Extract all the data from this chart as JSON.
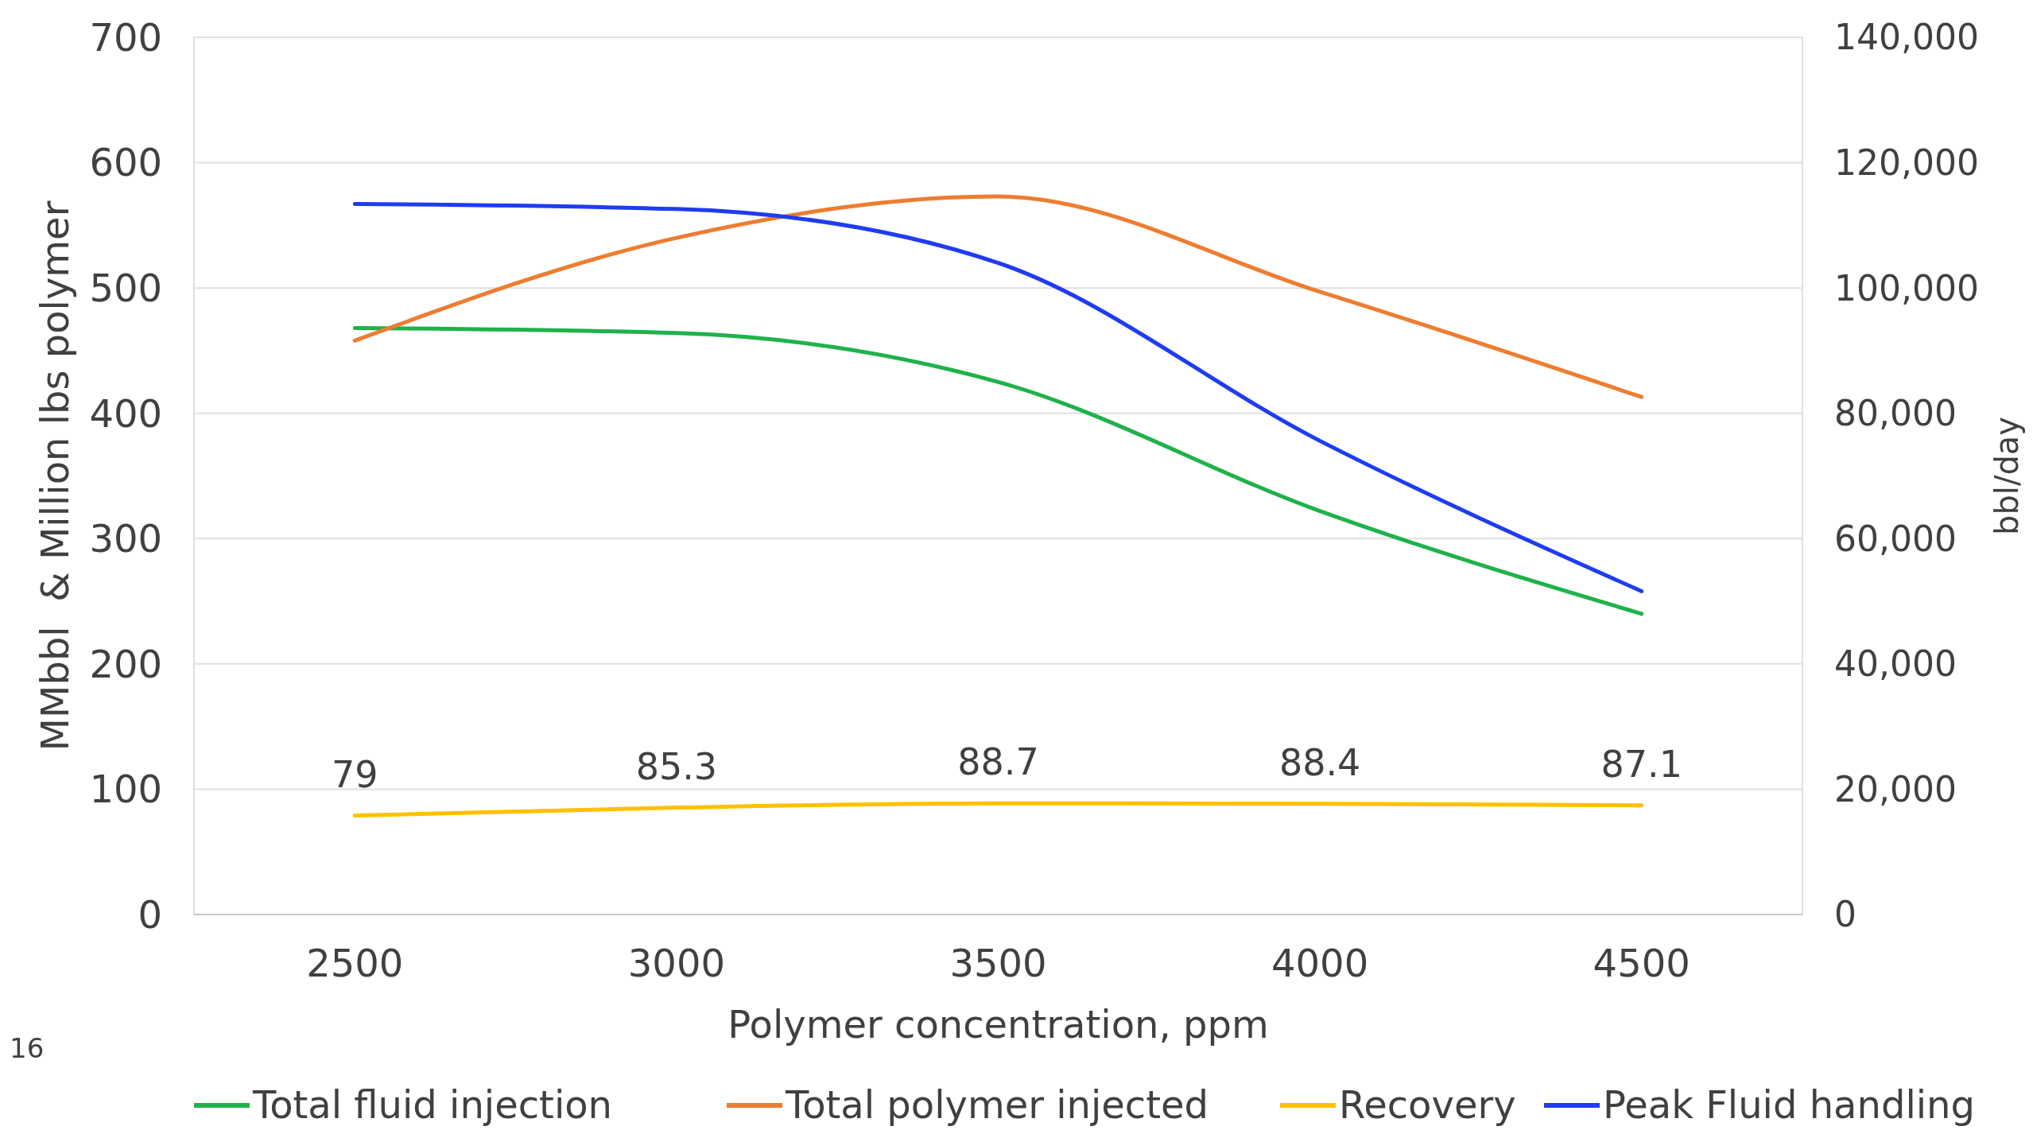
{
  "chart_data": {
    "type": "line",
    "xlabel": "Polymer concentration, ppm",
    "ylabel": "MMbbl  & Million lbs polymer",
    "y2label": "bbl/day",
    "categories": [
      "2500",
      "3000",
      "3500",
      "4000",
      "4500"
    ],
    "series": [
      {
        "name": "Total fluid injection",
        "color": "#1fb24a",
        "values": [
          468,
          464,
          425,
          322,
          240
        ]
      },
      {
        "name": "Total polymer injected",
        "color": "#ed7d31",
        "values": [
          458,
          540,
          573,
          497,
          413
        ]
      },
      {
        "name": "Recovery",
        "color": "#ffc000",
        "values": [
          79,
          85.3,
          88.7,
          88.4,
          87.1
        ],
        "value_labels": [
          "79",
          "85.3",
          "88.7",
          "88.4",
          "87.1"
        ]
      },
      {
        "name": "Peak Fluid handling",
        "color": "#1f3cf0",
        "axis": "y2",
        "values": [
          113400,
          112600,
          104000,
          75600,
          51600
        ]
      }
    ],
    "ylim": [
      0,
      700
    ],
    "yticks": [
      0,
      100,
      200,
      300,
      400,
      500,
      600,
      700
    ],
    "y2lim": [
      0,
      140000
    ],
    "y2ticks": [
      0,
      {
        "value": 20000,
        "label": "20,000"
      },
      {
        "value": 40000,
        "label": "40,000"
      },
      {
        "value": 60000,
        "label": "60,000"
      },
      {
        "value": 80000,
        "label": "80,000"
      },
      {
        "value": 100000,
        "label": "100,000"
      },
      {
        "value": 120000,
        "label": "120,000"
      },
      {
        "value": 140000,
        "label": "140,000"
      }
    ],
    "grid": "y",
    "legend": "bottom",
    "marker": "none",
    "line_style": "solid",
    "annotations": [
      "16"
    ]
  }
}
